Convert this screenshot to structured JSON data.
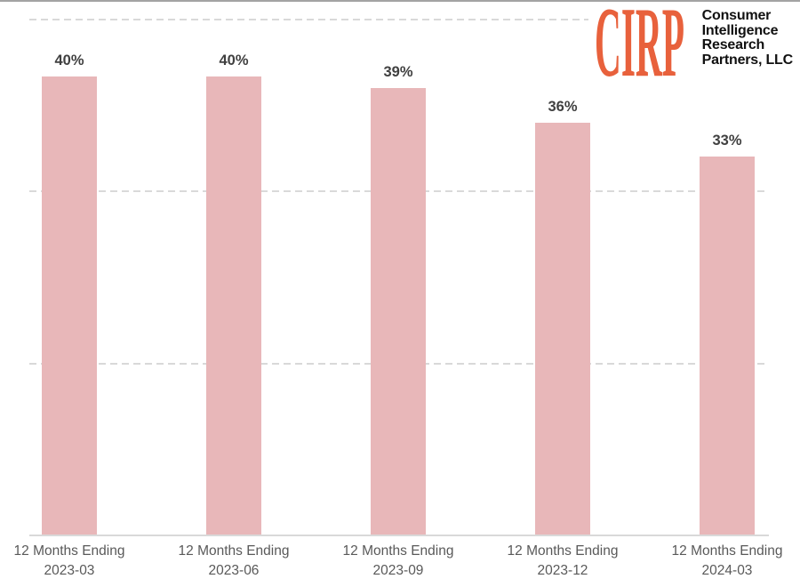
{
  "logo": {
    "monogram": "CIRP",
    "monogram_color": "#e8613c",
    "lines": [
      "Consumer",
      "Intelligence",
      "Research",
      "Partners, LLC"
    ],
    "text_color": "#111111"
  },
  "chart_data": {
    "type": "bar",
    "title": "",
    "xlabel": "",
    "ylabel": "",
    "categories": [
      "12 Months Ending\n2023-03",
      "12 Months Ending\n2023-06",
      "12 Months Ending\n2023-09",
      "12 Months Ending\n2023-12",
      "12 Months Ending\n2024-03"
    ],
    "values": [
      40,
      40,
      39,
      36,
      33
    ],
    "data_labels": [
      "40%",
      "40%",
      "39%",
      "36%",
      "33%"
    ],
    "ylim": [
      0,
      45
    ],
    "gridline_values": [
      15,
      30,
      45
    ],
    "grid_style": "dashed",
    "legend": "none",
    "bar_color": "#e8b7b9",
    "gridline_color": "#d9d9d9",
    "axis_line_color": "#d9d9d9",
    "data_label_color": "#404040",
    "category_label_color": "#595959"
  }
}
